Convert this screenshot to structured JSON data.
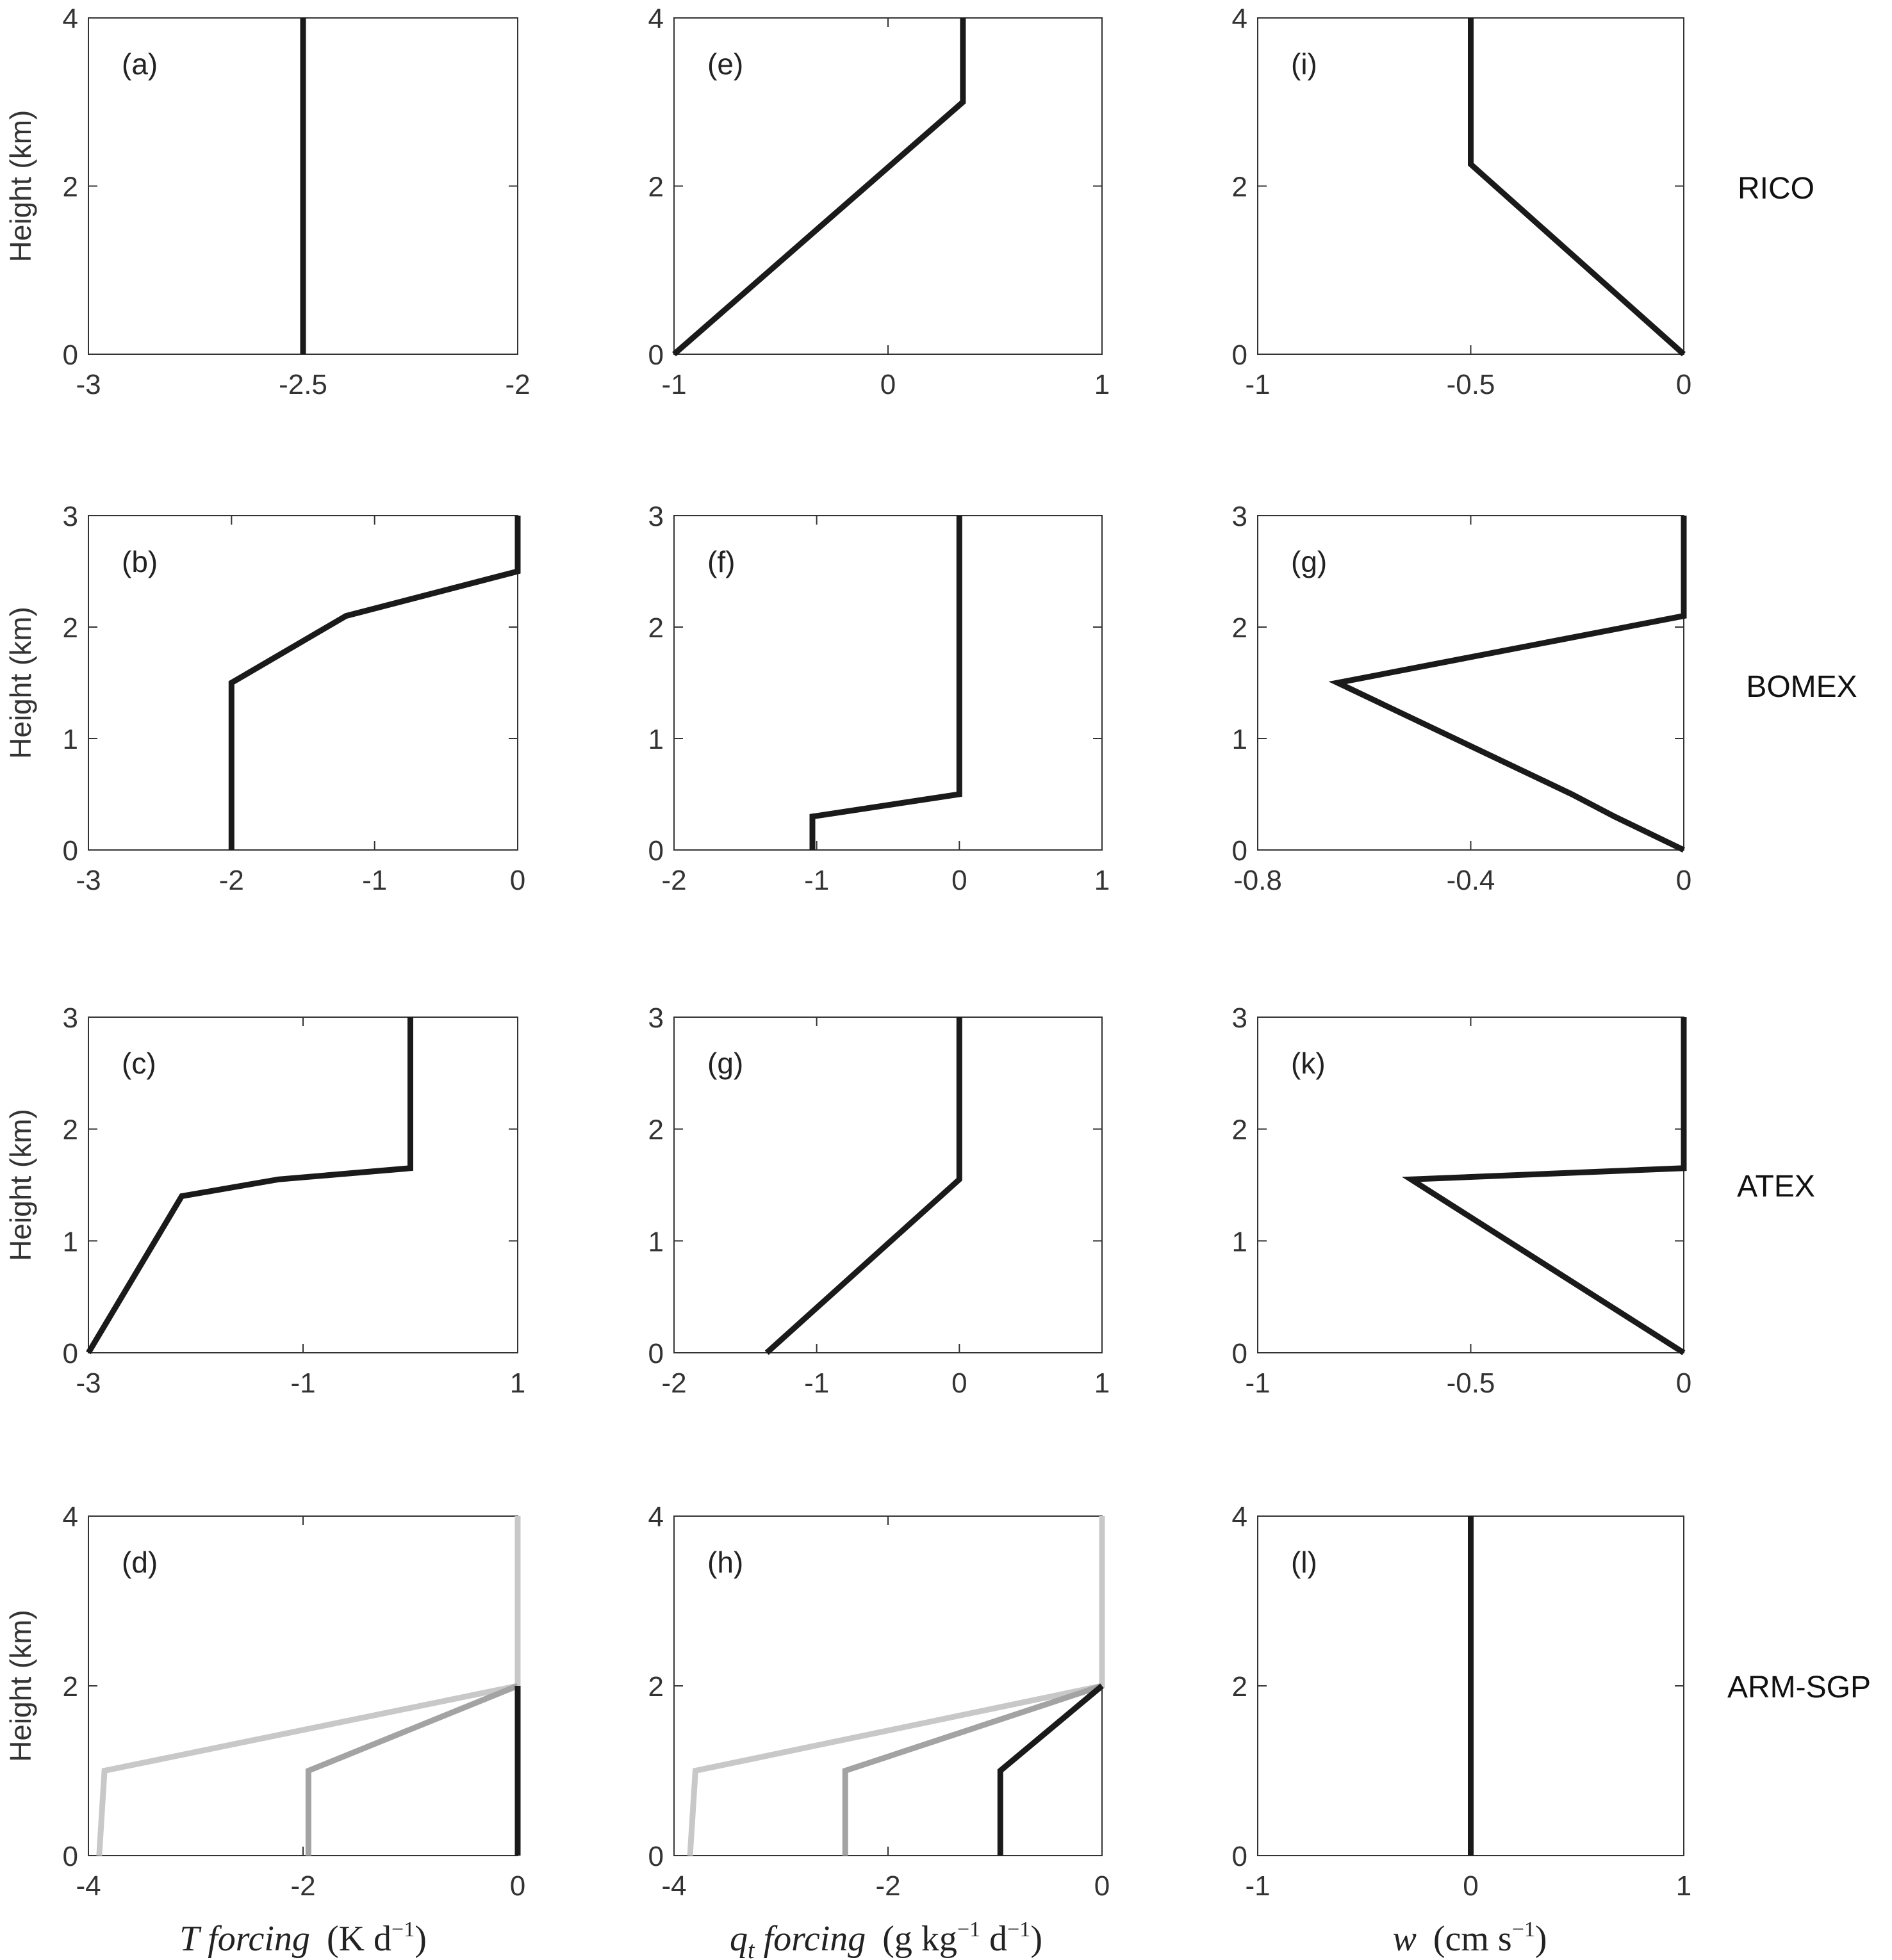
{
  "figure": {
    "rows": [
      "RICO",
      "BOMEX",
      "ATEX",
      "ARM-SGP"
    ],
    "ylabel": "Height (km)",
    "xlabels": [
      {
        "main": "T forcing",
        "unit": "(K d",
        "exp": "−1",
        "close": ")"
      },
      {
        "main": "q",
        "sub": "t",
        "rest": " forcing",
        "unit": "(g kg",
        "exp1": "−1",
        "unit2": " d",
        "exp2": "−1",
        "close": ")"
      },
      {
        "main": "w",
        "unit": "(cm s",
        "exp": "−1",
        "close": ")"
      }
    ],
    "colors": {
      "black": "#1a1a1a",
      "mid_gray": "#a3a3a3",
      "light_gray": "#c8c8c8"
    }
  },
  "chart_data": [
    {
      "id": "a",
      "panel_label": "(a)",
      "type": "line",
      "row": 0,
      "col": 0,
      "xlim": [
        -3,
        -2
      ],
      "ylim": [
        0,
        4
      ],
      "xticks": [
        -3,
        -2.5,
        -2
      ],
      "xticklabels": [
        "-3",
        "-2.5",
        "-2"
      ],
      "yticks": [
        0,
        2,
        4
      ],
      "yticklabels": [
        "0",
        "2",
        "4"
      ],
      "series": [
        {
          "color": "black",
          "x": [
            -2.5,
            -2.5
          ],
          "y": [
            0,
            4
          ]
        }
      ]
    },
    {
      "id": "e",
      "panel_label": "(e)",
      "type": "line",
      "row": 0,
      "col": 1,
      "xlim": [
        -1,
        1
      ],
      "ylim": [
        0,
        4
      ],
      "xticks": [
        -1,
        0,
        1
      ],
      "xticklabels": [
        "-1",
        "0",
        "1"
      ],
      "yticks": [
        0,
        2,
        4
      ],
      "yticklabels": [
        "0",
        "2",
        "4"
      ],
      "series": [
        {
          "color": "black",
          "x": [
            -1,
            0.35,
            0.35
          ],
          "y": [
            0,
            3,
            4
          ]
        }
      ]
    },
    {
      "id": "i",
      "panel_label": "(i)",
      "type": "line",
      "row": 0,
      "col": 2,
      "xlim": [
        -1,
        0
      ],
      "ylim": [
        0,
        4
      ],
      "xticks": [
        -1,
        -0.5,
        0
      ],
      "xticklabels": [
        "-1",
        "-0.5",
        "0"
      ],
      "yticks": [
        0,
        2,
        4
      ],
      "yticklabels": [
        "0",
        "2",
        "4"
      ],
      "series": [
        {
          "color": "black",
          "x": [
            0,
            -0.5,
            -0.5
          ],
          "y": [
            0,
            2.26,
            4
          ]
        }
      ]
    },
    {
      "id": "b",
      "panel_label": "(b)",
      "type": "line",
      "row": 1,
      "col": 0,
      "xlim": [
        -3,
        0
      ],
      "ylim": [
        0,
        3
      ],
      "xticks": [
        -3,
        -2,
        -1,
        0
      ],
      "xticklabels": [
        "-3",
        "-2",
        "-1",
        "0"
      ],
      "yticks": [
        0,
        1,
        2,
        3
      ],
      "yticklabels": [
        "0",
        "1",
        "2",
        "3"
      ],
      "series": [
        {
          "color": "black",
          "x": [
            -2,
            -2,
            -1.2,
            0,
            0
          ],
          "y": [
            0,
            1.5,
            2.1,
            2.5,
            3
          ]
        }
      ]
    },
    {
      "id": "f",
      "panel_label": "(f)",
      "type": "line",
      "row": 1,
      "col": 1,
      "xlim": [
        -2,
        1
      ],
      "ylim": [
        0,
        3
      ],
      "xticks": [
        -2,
        -1,
        0,
        1
      ],
      "xticklabels": [
        "-2",
        "-1",
        "0",
        "1"
      ],
      "yticks": [
        0,
        1,
        2,
        3
      ],
      "yticklabels": [
        "0",
        "1",
        "2",
        "3"
      ],
      "series": [
        {
          "color": "black",
          "x": [
            -1.03,
            -1.03,
            0,
            0
          ],
          "y": [
            0,
            0.3,
            0.5,
            3
          ]
        }
      ]
    },
    {
      "id": "g",
      "panel_label": "(g)",
      "type": "line",
      "row": 1,
      "col": 2,
      "xlim": [
        -0.8,
        0
      ],
      "ylim": [
        0,
        3
      ],
      "xticks": [
        -0.8,
        -0.4,
        0
      ],
      "xticklabels": [
        "-0.8",
        "-0.4",
        "0"
      ],
      "yticks": [
        0,
        1,
        2,
        3
      ],
      "yticklabels": [
        "0",
        "1",
        "2",
        "3"
      ],
      "series": [
        {
          "color": "black",
          "x": [
            0,
            -0.13,
            -0.21,
            -0.65,
            0,
            0
          ],
          "y": [
            0,
            0.3,
            0.5,
            1.5,
            2.1,
            3
          ]
        }
      ]
    },
    {
      "id": "c",
      "panel_label": "(c)",
      "type": "line",
      "row": 2,
      "col": 0,
      "xlim": [
        -3,
        1
      ],
      "ylim": [
        0,
        3
      ],
      "xticks": [
        -3,
        -1,
        1
      ],
      "xticklabels": [
        "-3",
        "-1",
        "1"
      ],
      "yticks": [
        0,
        1,
        2,
        3
      ],
      "yticklabels": [
        "0",
        "1",
        "2",
        "3"
      ],
      "series": [
        {
          "color": "black",
          "x": [
            -3,
            -2.13,
            -1.23,
            0,
            0
          ],
          "y": [
            0,
            1.4,
            1.55,
            1.65,
            3
          ]
        }
      ]
    },
    {
      "id": "g2",
      "panel_label": "(g)",
      "type": "line",
      "row": 2,
      "col": 1,
      "xlim": [
        -2,
        1
      ],
      "ylim": [
        0,
        3
      ],
      "xticks": [
        -2,
        -1,
        0,
        1
      ],
      "xticklabels": [
        "-2",
        "-1",
        "0",
        "1"
      ],
      "yticks": [
        0,
        1,
        2,
        3
      ],
      "yticklabels": [
        "0",
        "1",
        "2",
        "3"
      ],
      "series": [
        {
          "color": "black",
          "x": [
            -1.35,
            0,
            0
          ],
          "y": [
            0,
            1.55,
            3
          ]
        }
      ]
    },
    {
      "id": "k",
      "panel_label": "(k)",
      "type": "line",
      "row": 2,
      "col": 2,
      "xlim": [
        -1,
        0
      ],
      "ylim": [
        0,
        3
      ],
      "xticks": [
        -1,
        -0.5,
        0
      ],
      "xticklabels": [
        "-1",
        "-0.5",
        "0"
      ],
      "yticks": [
        0,
        1,
        2,
        3
      ],
      "yticklabels": [
        "0",
        "1",
        "2",
        "3"
      ],
      "series": [
        {
          "color": "black",
          "x": [
            0,
            -0.64,
            0,
            0
          ],
          "y": [
            0,
            1.55,
            1.65,
            3
          ]
        }
      ]
    },
    {
      "id": "d",
      "panel_label": "(d)",
      "type": "line",
      "row": 3,
      "col": 0,
      "xlim": [
        -4,
        0
      ],
      "ylim": [
        0,
        4
      ],
      "xticks": [
        -4,
        -2,
        0
      ],
      "xticklabels": [
        "-4",
        "-2",
        "0"
      ],
      "yticks": [
        0,
        2,
        4
      ],
      "yticklabels": [
        "0",
        "2",
        "4"
      ],
      "series": [
        {
          "color": "light_gray",
          "x": [
            -3.9,
            -3.85,
            0,
            0
          ],
          "y": [
            0,
            1,
            2,
            4
          ]
        },
        {
          "color": "mid_gray",
          "x": [
            -1.95,
            -1.95,
            0
          ],
          "y": [
            0,
            1,
            2
          ]
        },
        {
          "color": "black",
          "x": [
            0,
            0
          ],
          "y": [
            0,
            2
          ]
        }
      ]
    },
    {
      "id": "h",
      "panel_label": "(h)",
      "type": "line",
      "row": 3,
      "col": 1,
      "xlim": [
        -4,
        0
      ],
      "ylim": [
        0,
        4
      ],
      "xticks": [
        -4,
        -2,
        0
      ],
      "xticklabels": [
        "-4",
        "-2",
        "0"
      ],
      "yticks": [
        0,
        2,
        4
      ],
      "yticklabels": [
        "0",
        "2",
        "4"
      ],
      "series": [
        {
          "color": "light_gray",
          "x": [
            -3.85,
            -3.8,
            0,
            0
          ],
          "y": [
            0,
            1,
            2,
            4
          ]
        },
        {
          "color": "mid_gray",
          "x": [
            -2.4,
            -2.4,
            0
          ],
          "y": [
            0,
            1,
            2
          ]
        },
        {
          "color": "black",
          "x": [
            -0.95,
            -0.95,
            0
          ],
          "y": [
            0,
            1,
            2
          ]
        }
      ]
    },
    {
      "id": "l",
      "panel_label": "(l)",
      "type": "line",
      "row": 3,
      "col": 2,
      "xlim": [
        -1,
        1
      ],
      "ylim": [
        0,
        4
      ],
      "xticks": [
        -1,
        0,
        1
      ],
      "xticklabels": [
        "-1",
        "0",
        "1"
      ],
      "yticks": [
        0,
        2,
        4
      ],
      "yticklabels": [
        "0",
        "2",
        "4"
      ],
      "series": [
        {
          "color": "black",
          "x": [
            0,
            0
          ],
          "y": [
            0,
            4
          ]
        }
      ]
    }
  ]
}
